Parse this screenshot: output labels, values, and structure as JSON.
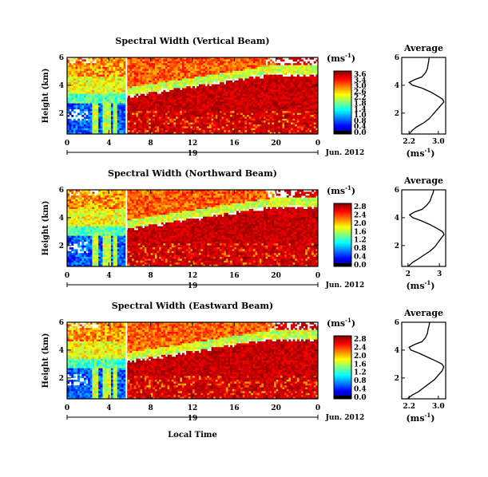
{
  "figure": {
    "x_axis_label": "Local Time",
    "date_label": "Jun. 2012",
    "day_label": "19",
    "y_axis_label": "Height (km)",
    "unit_label": "(ms",
    "unit_sup": "-1",
    "unit_close": ")",
    "avg_title": "Average"
  },
  "chart_data": [
    {
      "type": "heatmap",
      "title": "Spectral Width (Vertical Beam)",
      "x_ticks": [
        "0",
        "4",
        "8",
        "12",
        "16",
        "20",
        "0"
      ],
      "y_ticks": [
        "6",
        "4",
        "2"
      ],
      "xlim_hours": [
        0,
        24
      ],
      "ylim_km": [
        0.5,
        6
      ],
      "colorbar_ticks": [
        "3.6",
        "3.4",
        "3.0",
        "2.6",
        "2.2",
        "1.8",
        "1.4",
        "1.0",
        "0.8",
        "0.4",
        "0.0"
      ],
      "colorbar_range": [
        0.0,
        3.6
      ],
      "average_profile": {
        "title": "Average",
        "xlabel": "(ms-1)",
        "x_ticks": [
          "2.2",
          "3.0"
        ],
        "xlim": [
          2.0,
          3.2
        ],
        "y_ticks": [
          "6",
          "4",
          "2"
        ],
        "height_km": [
          0.5,
          0.8,
          1.0,
          1.3,
          1.6,
          1.9,
          2.2,
          2.5,
          2.8,
          3.0,
          3.2,
          3.5,
          3.8,
          4.0,
          4.2,
          4.4,
          4.6,
          4.9,
          5.2,
          5.5,
          5.8,
          6.0
        ],
        "values": [
          2.2,
          2.3,
          2.4,
          2.6,
          2.75,
          2.85,
          2.95,
          3.05,
          3.15,
          3.12,
          3.0,
          2.8,
          2.55,
          2.3,
          2.2,
          2.35,
          2.55,
          2.65,
          2.7,
          2.72,
          2.74,
          2.75
        ]
      }
    },
    {
      "type": "heatmap",
      "title": "Spectral Width (Northward Beam)",
      "x_ticks": [
        "0",
        "4",
        "8",
        "12",
        "16",
        "20",
        "0"
      ],
      "y_ticks": [
        "6",
        "4",
        "2"
      ],
      "xlim_hours": [
        0,
        24
      ],
      "ylim_km": [
        0.5,
        6
      ],
      "colorbar_ticks": [
        "2.8",
        "2.4",
        "2.0",
        "1.6",
        "1.2",
        "0.8",
        "0.4",
        "0.0"
      ],
      "colorbar_range": [
        0.0,
        2.8
      ],
      "average_profile": {
        "title": "Average",
        "xlabel": "(ms-1)",
        "x_ticks": [
          "2",
          "3"
        ],
        "xlim": [
          1.8,
          3.2
        ],
        "y_ticks": [
          "6",
          "4",
          "2"
        ],
        "height_km": [
          0.5,
          0.8,
          1.0,
          1.3,
          1.6,
          1.9,
          2.2,
          2.5,
          2.8,
          3.0,
          3.2,
          3.5,
          3.8,
          4.0,
          4.2,
          4.4,
          4.6,
          4.9,
          5.2,
          5.5,
          5.8,
          6.0
        ],
        "values": [
          2.0,
          2.15,
          2.3,
          2.5,
          2.7,
          2.85,
          2.95,
          3.05,
          3.15,
          3.1,
          2.95,
          2.7,
          2.4,
          2.15,
          2.05,
          2.2,
          2.45,
          2.6,
          2.7,
          2.75,
          2.8,
          2.82
        ]
      }
    },
    {
      "type": "heatmap",
      "title": "Spectral Width (Eastward Beam)",
      "x_ticks": [
        "0",
        "4",
        "8",
        "12",
        "16",
        "20",
        "0"
      ],
      "y_ticks": [
        "6",
        "4",
        "2"
      ],
      "xlim_hours": [
        0,
        24
      ],
      "ylim_km": [
        0.5,
        6
      ],
      "colorbar_ticks": [
        "2.8",
        "2.4",
        "2.0",
        "1.6",
        "1.2",
        "0.8",
        "0.4",
        "0.0"
      ],
      "colorbar_range": [
        0.0,
        2.8
      ],
      "average_profile": {
        "title": "Average",
        "xlabel": "(ms-1)",
        "x_ticks": [
          "2.2",
          "3.0"
        ],
        "xlim": [
          2.0,
          3.2
        ],
        "y_ticks": [
          "6",
          "4",
          "2"
        ],
        "height_km": [
          0.5,
          0.8,
          1.0,
          1.3,
          1.6,
          1.9,
          2.2,
          2.5,
          2.8,
          3.0,
          3.2,
          3.5,
          3.8,
          4.0,
          4.2,
          4.4,
          4.6,
          4.9,
          5.2,
          5.5,
          5.8,
          6.0
        ],
        "values": [
          2.15,
          2.3,
          2.45,
          2.6,
          2.75,
          2.9,
          3.0,
          3.1,
          3.15,
          3.1,
          2.95,
          2.7,
          2.45,
          2.25,
          2.2,
          2.35,
          2.55,
          2.65,
          2.7,
          2.72,
          2.75,
          2.76
        ]
      }
    }
  ]
}
